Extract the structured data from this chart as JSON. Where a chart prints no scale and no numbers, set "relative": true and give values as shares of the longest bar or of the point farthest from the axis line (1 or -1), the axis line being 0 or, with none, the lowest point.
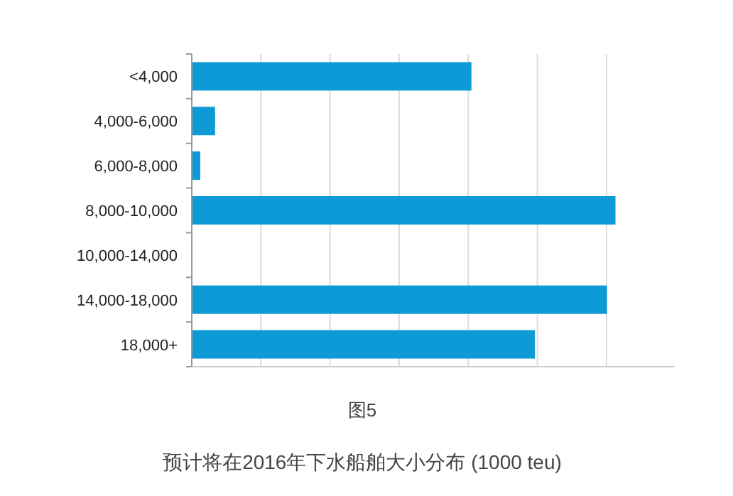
{
  "chart_data": {
    "type": "bar",
    "orientation": "horizontal",
    "relative": true,
    "grid": "x",
    "categories": [
      "<4,000",
      "4,000-6,000",
      "6,000-8,000",
      "8,000-10,000",
      "10,000-14,000",
      "14,000-18,000",
      "18,000+"
    ],
    "series": [
      {
        "color": "#0e9ad6",
        "values": [
          0.66,
          0.055,
          0.02,
          1,
          null,
          0.98,
          0.81
        ]
      }
    ],
    "annotations": [
      "图5",
      "预计将在2016年下水船舶大小分布 (1000 teu)"
    ]
  }
}
